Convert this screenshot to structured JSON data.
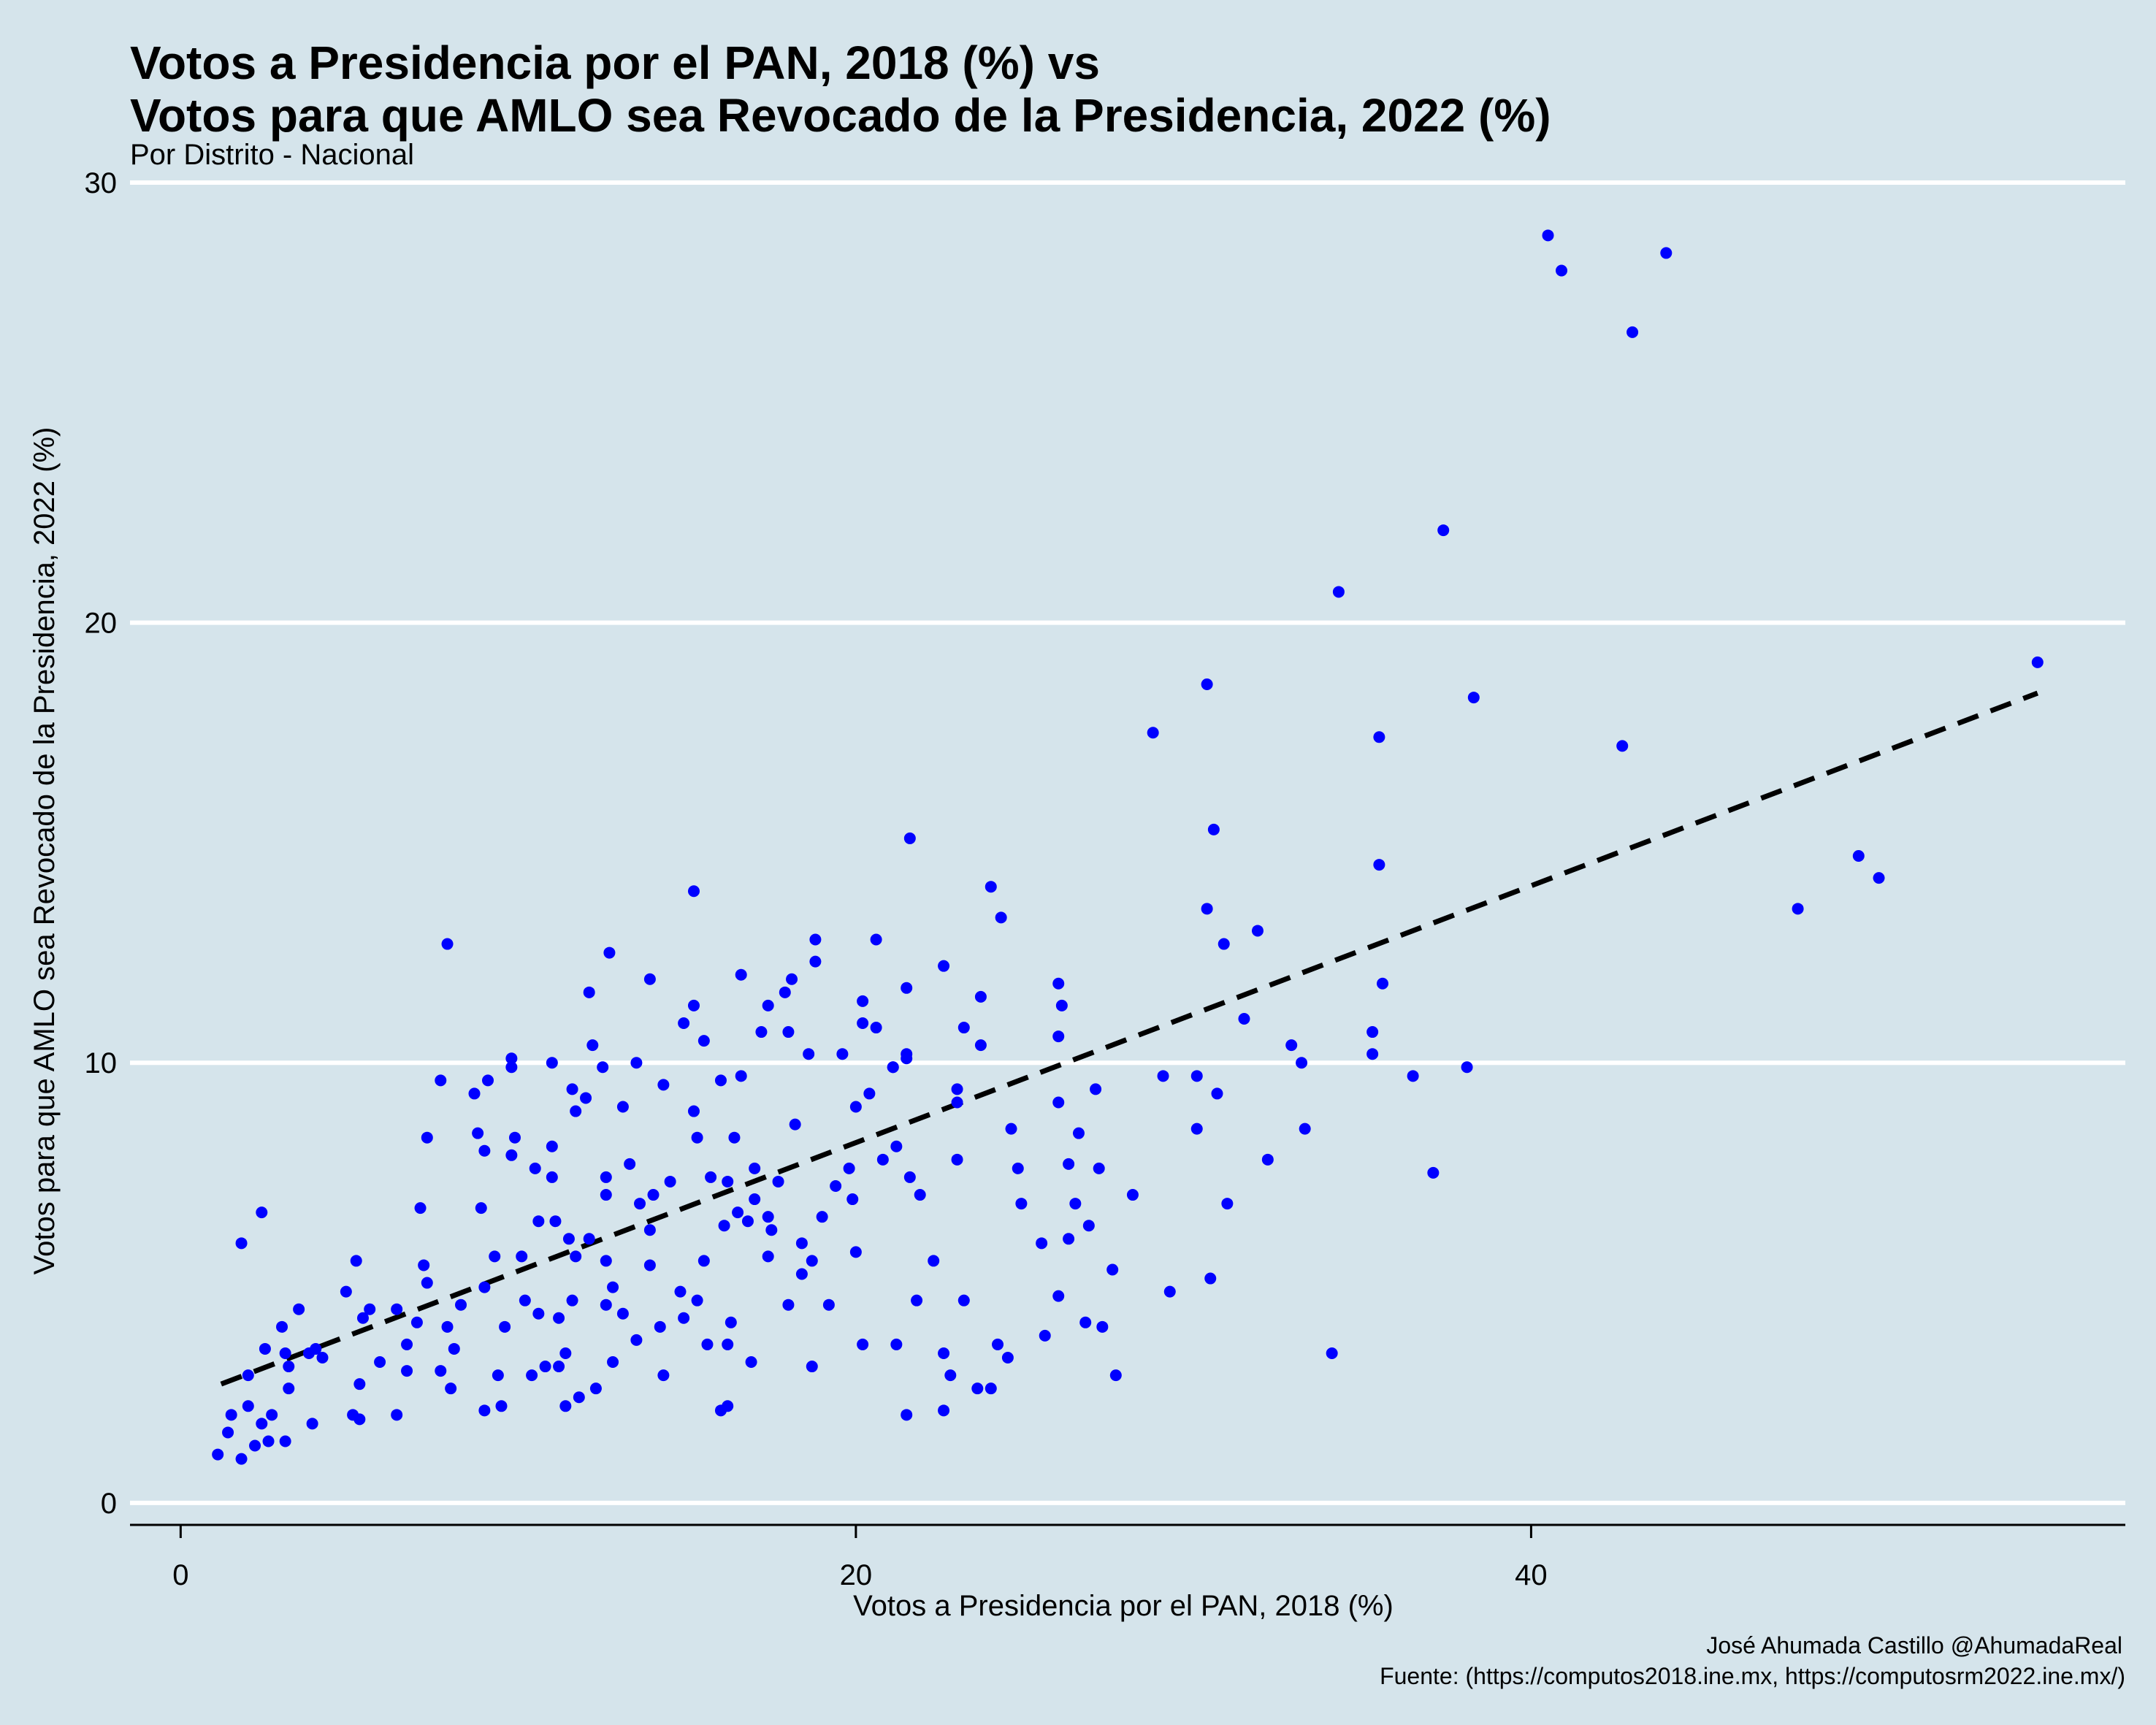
{
  "colors": {
    "background": "#d5e4eb",
    "points": "#0000ff",
    "trend": "#000000",
    "grid": "#ffffff"
  },
  "chart_data": {
    "type": "scatter",
    "title_line1": "Votos a Presidencia por el PAN, 2018 (%)  vs",
    "title_line2": "Votos para que AMLO sea Revocado de la Presidencia, 2022 (%)",
    "subtitle": "Por Distrito - Nacional",
    "xlabel": "Votos a Presidencia por el PAN, 2018 (%)",
    "ylabel": "Votos para que AMLO sea Revocado de la Presidencia, 2022 (%)",
    "caption_line1": "José Ahumada Castillo @AhumadaReal",
    "caption_line2": "Fuente: (https://computos2018.ine.mx, https://computosrm2022.ine.mx/)",
    "xlim": [
      -1.5,
      57.6
    ],
    "ylim": [
      -0.5,
      30
    ],
    "x_ticks": [
      0,
      20,
      40
    ],
    "x_tick_labels": [
      "0",
      "20",
      "40"
    ],
    "y_ticks": [
      0,
      10,
      20,
      30
    ],
    "y_tick_labels": [
      "0",
      "10",
      "20",
      "30"
    ],
    "grid": "horizontal",
    "trend_line": {
      "style": "dashed",
      "x": [
        1.2,
        55.0
      ],
      "y": [
        2.7,
        18.4
      ]
    },
    "points": [
      [
        40.5,
        28.8
      ],
      [
        40.9,
        28.0
      ],
      [
        44.0,
        28.4
      ],
      [
        43.0,
        26.6
      ],
      [
        37.4,
        22.1
      ],
      [
        34.3,
        20.7
      ],
      [
        55.0,
        19.1
      ],
      [
        30.4,
        18.6
      ],
      [
        38.3,
        18.3
      ],
      [
        28.8,
        17.5
      ],
      [
        35.5,
        17.4
      ],
      [
        42.7,
        17.2
      ],
      [
        30.6,
        15.3
      ],
      [
        21.6,
        15.1
      ],
      [
        49.7,
        14.7
      ],
      [
        50.3,
        14.2
      ],
      [
        35.5,
        14.5
      ],
      [
        24.0,
        14.0
      ],
      [
        15.2,
        13.9
      ],
      [
        30.4,
        13.5
      ],
      [
        47.9,
        13.5
      ],
      [
        24.3,
        13.3
      ],
      [
        31.9,
        13.0
      ],
      [
        20.6,
        12.8
      ],
      [
        18.8,
        12.8
      ],
      [
        7.9,
        12.7
      ],
      [
        30.9,
        12.7
      ],
      [
        12.7,
        12.5
      ],
      [
        18.8,
        12.3
      ],
      [
        22.6,
        12.2
      ],
      [
        16.6,
        12.0
      ],
      [
        13.9,
        11.9
      ],
      [
        18.1,
        11.9
      ],
      [
        26.0,
        11.8
      ],
      [
        35.6,
        11.8
      ],
      [
        12.1,
        11.6
      ],
      [
        21.5,
        11.7
      ],
      [
        17.9,
        11.6
      ],
      [
        23.7,
        11.5
      ],
      [
        20.2,
        11.4
      ],
      [
        15.2,
        11.3
      ],
      [
        17.4,
        11.3
      ],
      [
        26.1,
        11.3
      ],
      [
        31.5,
        11.0
      ],
      [
        14.9,
        10.9
      ],
      [
        20.2,
        10.9
      ],
      [
        20.6,
        10.8
      ],
      [
        23.2,
        10.8
      ],
      [
        18.0,
        10.7
      ],
      [
        17.2,
        10.7
      ],
      [
        35.3,
        10.7
      ],
      [
        26.0,
        10.6
      ],
      [
        12.2,
        10.4
      ],
      [
        15.5,
        10.5
      ],
      [
        23.7,
        10.4
      ],
      [
        32.9,
        10.4
      ],
      [
        18.6,
        10.2
      ],
      [
        19.6,
        10.2
      ],
      [
        21.5,
        10.2
      ],
      [
        35.3,
        10.2
      ],
      [
        9.8,
        10.1
      ],
      [
        13.5,
        10.0
      ],
      [
        21.5,
        10.1
      ],
      [
        33.2,
        10.0
      ],
      [
        11.0,
        10.0
      ],
      [
        12.5,
        9.9
      ],
      [
        21.1,
        9.9
      ],
      [
        38.1,
        9.9
      ],
      [
        21.1,
        9.9
      ],
      [
        9.8,
        9.9
      ],
      [
        36.5,
        9.7
      ],
      [
        29.1,
        9.7
      ],
      [
        30.1,
        9.7
      ],
      [
        9.1,
        9.6
      ],
      [
        7.7,
        9.6
      ],
      [
        14.3,
        9.5
      ],
      [
        16.0,
        9.6
      ],
      [
        16.6,
        9.7
      ],
      [
        27.1,
        9.4
      ],
      [
        23.0,
        9.4
      ],
      [
        8.7,
        9.3
      ],
      [
        11.6,
        9.4
      ],
      [
        20.4,
        9.3
      ],
      [
        30.7,
        9.3
      ],
      [
        12.0,
        9.2
      ],
      [
        23.0,
        9.1
      ],
      [
        26.0,
        9.1
      ],
      [
        20.0,
        9.0
      ],
      [
        13.1,
        9.0
      ],
      [
        15.2,
        8.9
      ],
      [
        11.7,
        8.9
      ],
      [
        24.6,
        8.5
      ],
      [
        33.3,
        8.5
      ],
      [
        18.2,
        8.6
      ],
      [
        30.1,
        8.5
      ],
      [
        26.6,
        8.4
      ],
      [
        8.8,
        8.4
      ],
      [
        9.9,
        8.3
      ],
      [
        15.3,
        8.3
      ],
      [
        7.3,
        8.3
      ],
      [
        16.4,
        8.3
      ],
      [
        11.0,
        8.1
      ],
      [
        21.2,
        8.1
      ],
      [
        9.0,
        8.0
      ],
      [
        9.8,
        7.9
      ],
      [
        20.8,
        7.8
      ],
      [
        32.2,
        7.8
      ],
      [
        26.3,
        7.7
      ],
      [
        23.0,
        7.8
      ],
      [
        27.2,
        7.6
      ],
      [
        24.8,
        7.6
      ],
      [
        13.3,
        7.7
      ],
      [
        10.5,
        7.6
      ],
      [
        17.0,
        7.6
      ],
      [
        19.8,
        7.6
      ],
      [
        11.0,
        7.4
      ],
      [
        15.7,
        7.4
      ],
      [
        37.1,
        7.5
      ],
      [
        21.6,
        7.4
      ],
      [
        12.6,
        7.4
      ],
      [
        14.5,
        7.3
      ],
      [
        17.7,
        7.3
      ],
      [
        19.4,
        7.2
      ],
      [
        16.2,
        7.3
      ],
      [
        14.0,
        7.0
      ],
      [
        28.2,
        7.0
      ],
      [
        21.9,
        7.0
      ],
      [
        19.9,
        6.9
      ],
      [
        12.6,
        7.0
      ],
      [
        17.0,
        6.9
      ],
      [
        13.6,
        6.8
      ],
      [
        26.5,
        6.8
      ],
      [
        31.0,
        6.8
      ],
      [
        24.9,
        6.8
      ],
      [
        8.9,
        6.7
      ],
      [
        7.1,
        6.7
      ],
      [
        2.4,
        6.6
      ],
      [
        16.5,
        6.6
      ],
      [
        19.0,
        6.5
      ],
      [
        17.4,
        6.5
      ],
      [
        16.8,
        6.4
      ],
      [
        16.1,
        6.3
      ],
      [
        10.6,
        6.4
      ],
      [
        11.1,
        6.4
      ],
      [
        13.9,
        6.2
      ],
      [
        17.5,
        6.2
      ],
      [
        11.5,
        6.0
      ],
      [
        26.9,
        6.3
      ],
      [
        26.3,
        6.0
      ],
      [
        25.5,
        5.9
      ],
      [
        18.4,
        5.9
      ],
      [
        12.1,
        6.0
      ],
      [
        1.8,
        5.9
      ],
      [
        20.0,
        5.7
      ],
      [
        17.4,
        5.6
      ],
      [
        15.5,
        5.5
      ],
      [
        18.7,
        5.5
      ],
      [
        12.6,
        5.5
      ],
      [
        27.6,
        5.3
      ],
      [
        7.2,
        5.4
      ],
      [
        13.9,
        5.4
      ],
      [
        9.3,
        5.6
      ],
      [
        10.1,
        5.6
      ],
      [
        5.2,
        5.5
      ],
      [
        11.7,
        5.6
      ],
      [
        22.3,
        5.5
      ],
      [
        30.5,
        5.1
      ],
      [
        18.4,
        5.2
      ],
      [
        7.3,
        5.0
      ],
      [
        4.9,
        4.8
      ],
      [
        9.0,
        4.9
      ],
      [
        12.8,
        4.9
      ],
      [
        14.8,
        4.8
      ],
      [
        26.0,
        4.7
      ],
      [
        29.3,
        4.8
      ],
      [
        21.8,
        4.6
      ],
      [
        23.2,
        4.6
      ],
      [
        19.2,
        4.5
      ],
      [
        15.3,
        4.6
      ],
      [
        11.6,
        4.6
      ],
      [
        10.2,
        4.6
      ],
      [
        8.3,
        4.5
      ],
      [
        6.4,
        4.4
      ],
      [
        12.6,
        4.5
      ],
      [
        18.0,
        4.5
      ],
      [
        13.1,
        4.3
      ],
      [
        10.6,
        4.3
      ],
      [
        5.6,
        4.4
      ],
      [
        11.2,
        4.2
      ],
      [
        14.9,
        4.2
      ],
      [
        3.5,
        4.4
      ],
      [
        16.3,
        4.1
      ],
      [
        3.0,
        4.0
      ],
      [
        7.0,
        4.1
      ],
      [
        5.4,
        4.2
      ],
      [
        27.3,
        4.0
      ],
      [
        9.6,
        4.0
      ],
      [
        14.2,
        4.0
      ],
      [
        7.9,
        4.0
      ],
      [
        26.8,
        4.1
      ],
      [
        13.5,
        3.7
      ],
      [
        16.2,
        3.6
      ],
      [
        6.7,
        3.6
      ],
      [
        24.2,
        3.6
      ],
      [
        8.1,
        3.5
      ],
      [
        15.6,
        3.6
      ],
      [
        20.2,
        3.6
      ],
      [
        21.2,
        3.6
      ],
      [
        11.4,
        3.4
      ],
      [
        12.8,
        3.2
      ],
      [
        4.0,
        3.5
      ],
      [
        10.8,
        3.1
      ],
      [
        3.8,
        3.4
      ],
      [
        3.2,
        3.1
      ],
      [
        2.5,
        3.5
      ],
      [
        4.2,
        3.3
      ],
      [
        5.9,
        3.2
      ],
      [
        7.7,
        3.0
      ],
      [
        3.1,
        3.4
      ],
      [
        34.1,
        3.4
      ],
      [
        22.6,
        3.4
      ],
      [
        24.5,
        3.3
      ],
      [
        18.7,
        3.1
      ],
      [
        11.2,
        3.1
      ],
      [
        16.9,
        3.2
      ],
      [
        6.7,
        3.0
      ],
      [
        9.4,
        2.9
      ],
      [
        10.4,
        2.9
      ],
      [
        14.3,
        2.9
      ],
      [
        27.7,
        2.9
      ],
      [
        22.8,
        2.9
      ],
      [
        2.0,
        2.9
      ],
      [
        11.4,
        2.2
      ],
      [
        23.6,
        2.6
      ],
      [
        11.8,
        2.4
      ],
      [
        3.2,
        2.6
      ],
      [
        24.0,
        2.6
      ],
      [
        5.3,
        2.7
      ],
      [
        12.3,
        2.6
      ],
      [
        9.5,
        2.2
      ],
      [
        16.2,
        2.2
      ],
      [
        9.0,
        2.1
      ],
      [
        2.0,
        2.2
      ],
      [
        1.5,
        2.0
      ],
      [
        2.7,
        2.0
      ],
      [
        16.0,
        2.1
      ],
      [
        22.6,
        2.1
      ],
      [
        2.4,
        1.8
      ],
      [
        1.4,
        1.6
      ],
      [
        2.6,
        1.4
      ],
      [
        3.1,
        1.4
      ],
      [
        3.9,
        1.8
      ],
      [
        5.3,
        1.9
      ],
      [
        5.1,
        2.0
      ],
      [
        1.8,
        1.0
      ],
      [
        1.1,
        1.1
      ],
      [
        2.2,
        1.3
      ],
      [
        6.4,
        2.0
      ],
      [
        21.5,
        2.0
      ],
      [
        25.6,
        3.8
      ],
      [
        8.0,
        2.6
      ]
    ]
  }
}
